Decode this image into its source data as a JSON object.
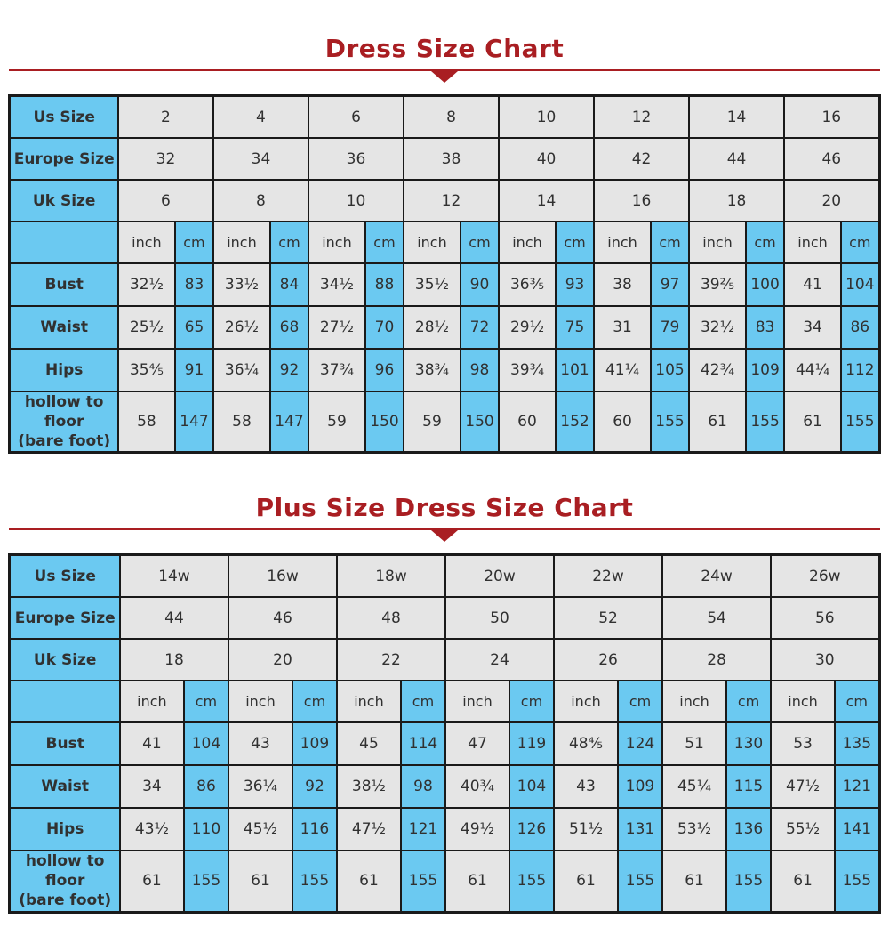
{
  "colors": {
    "accent_red": "#a91e22",
    "cell_blue": "#6bc9f1",
    "cell_gray": "#e5e5e5",
    "border_black": "#1a1a1a",
    "text_dark": "#313131"
  },
  "chart_data": [
    {
      "type": "table",
      "title": "Dress Size Chart",
      "unit_labels": {
        "inch": "inch",
        "cm": "cm"
      },
      "size_rows": [
        {
          "label": "Us Size",
          "values": [
            "2",
            "4",
            "6",
            "8",
            "10",
            "12",
            "14",
            "16"
          ]
        },
        {
          "label": "Europe Size",
          "values": [
            "32",
            "34",
            "36",
            "38",
            "40",
            "42",
            "44",
            "46"
          ]
        },
        {
          "label": "Uk Size",
          "values": [
            "6",
            "8",
            "10",
            "12",
            "14",
            "16",
            "18",
            "20"
          ]
        }
      ],
      "measure_rows": [
        {
          "label": "Bust",
          "values": [
            [
              "32½",
              "83"
            ],
            [
              "33½",
              "84"
            ],
            [
              "34½",
              "88"
            ],
            [
              "35½",
              "90"
            ],
            [
              "36⅗",
              "93"
            ],
            [
              "38",
              "97"
            ],
            [
              "39⅖",
              "100"
            ],
            [
              "41",
              "104"
            ]
          ]
        },
        {
          "label": "Waist",
          "values": [
            [
              "25½",
              "65"
            ],
            [
              "26½",
              "68"
            ],
            [
              "27½",
              "70"
            ],
            [
              "28½",
              "72"
            ],
            [
              "29½",
              "75"
            ],
            [
              "31",
              "79"
            ],
            [
              "32½",
              "83"
            ],
            [
              "34",
              "86"
            ]
          ]
        },
        {
          "label": "Hips",
          "values": [
            [
              "35⅘",
              "91"
            ],
            [
              "36¼",
              "92"
            ],
            [
              "37¾",
              "96"
            ],
            [
              "38¾",
              "98"
            ],
            [
              "39¾",
              "101"
            ],
            [
              "41¼",
              "105"
            ],
            [
              "42¾",
              "109"
            ],
            [
              "44¼",
              "112"
            ]
          ]
        },
        {
          "label_lines": [
            "hollow to floor",
            "(bare foot)"
          ],
          "values": [
            [
              "58",
              "147"
            ],
            [
              "58",
              "147"
            ],
            [
              "59",
              "150"
            ],
            [
              "59",
              "150"
            ],
            [
              "60",
              "152"
            ],
            [
              "60",
              "155"
            ],
            [
              "61",
              "155"
            ],
            [
              "61",
              "155"
            ]
          ]
        }
      ]
    },
    {
      "type": "table",
      "title": "Plus Size Dress Size Chart",
      "unit_labels": {
        "inch": "inch",
        "cm": "cm"
      },
      "size_rows": [
        {
          "label": "Us Size",
          "values": [
            "14w",
            "16w",
            "18w",
            "20w",
            "22w",
            "24w",
            "26w"
          ]
        },
        {
          "label": "Europe Size",
          "values": [
            "44",
            "46",
            "48",
            "50",
            "52",
            "54",
            "56"
          ]
        },
        {
          "label": "Uk Size",
          "values": [
            "18",
            "20",
            "22",
            "24",
            "26",
            "28",
            "30"
          ]
        }
      ],
      "measure_rows": [
        {
          "label": "Bust",
          "values": [
            [
              "41",
              "104"
            ],
            [
              "43",
              "109"
            ],
            [
              "45",
              "114"
            ],
            [
              "47",
              "119"
            ],
            [
              "48⅘",
              "124"
            ],
            [
              "51",
              "130"
            ],
            [
              "53",
              "135"
            ]
          ]
        },
        {
          "label": "Waist",
          "values": [
            [
              "34",
              "86"
            ],
            [
              "36¼",
              "92"
            ],
            [
              "38½",
              "98"
            ],
            [
              "40¾",
              "104"
            ],
            [
              "43",
              "109"
            ],
            [
              "45¼",
              "115"
            ],
            [
              "47½",
              "121"
            ]
          ]
        },
        {
          "label": "Hips",
          "values": [
            [
              "43½",
              "110"
            ],
            [
              "45½",
              "116"
            ],
            [
              "47½",
              "121"
            ],
            [
              "49½",
              "126"
            ],
            [
              "51½",
              "131"
            ],
            [
              "53½",
              "136"
            ],
            [
              "55½",
              "141"
            ]
          ]
        },
        {
          "label_lines": [
            "hollow to floor",
            "(bare foot)"
          ],
          "values": [
            [
              "61",
              "155"
            ],
            [
              "61",
              "155"
            ],
            [
              "61",
              "155"
            ],
            [
              "61",
              "155"
            ],
            [
              "61",
              "155"
            ],
            [
              "61",
              "155"
            ],
            [
              "61",
              "155"
            ]
          ]
        }
      ]
    }
  ]
}
